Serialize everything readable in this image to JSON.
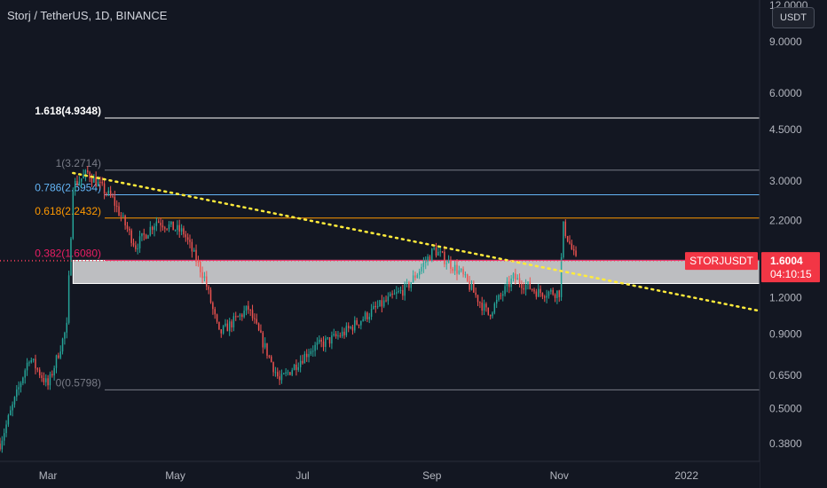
{
  "header": {
    "title": "Storj / TetherUS, 1D, BINANCE",
    "currency": "USDT"
  },
  "price_scale": {
    "ticks": [
      {
        "label": "12.0000",
        "value": 12.0
      },
      {
        "label": "9.0000",
        "value": 9.0
      },
      {
        "label": "6.0000",
        "value": 6.0
      },
      {
        "label": "4.5000",
        "value": 4.5
      },
      {
        "label": "3.0000",
        "value": 3.0
      },
      {
        "label": "2.2000",
        "value": 2.2
      },
      {
        "label": "1.6004",
        "value": 1.6004
      },
      {
        "label": "1.2000",
        "value": 1.2
      },
      {
        "label": "0.9000",
        "value": 0.9
      },
      {
        "label": "0.6500",
        "value": 0.65
      },
      {
        "label": "0.5000",
        "value": 0.5
      },
      {
        "label": "0.3800",
        "value": 0.38
      }
    ]
  },
  "time_scale": {
    "ticks": [
      "Mar",
      "May",
      "Jul",
      "Sep",
      "Nov",
      "2022"
    ]
  },
  "last_price": {
    "symbol": "STORJUSDT",
    "price": "1.6004",
    "countdown": "04:10:15",
    "value": 1.6004
  },
  "chart_data": {
    "type": "candlestick",
    "scale": "log",
    "x_range": [
      "2021-02-06",
      "2022-02-05"
    ],
    "y_range": [
      0.33,
      12.5
    ],
    "grid": false,
    "fib_levels": [
      {
        "label": "1.618(4.9348)",
        "value": 4.9348,
        "color": "#ffffff"
      },
      {
        "label": "1(3.2714)",
        "value": 3.2714,
        "color": "#787b86"
      },
      {
        "label": "0.786(2.6954)",
        "value": 2.6954,
        "color": "#64b5f6"
      },
      {
        "label": "0.618(2.2432)",
        "value": 2.2432,
        "color": "#ff9800"
      },
      {
        "label": "0.382(1.6080)",
        "value": 1.608,
        "color": "#e91e63"
      },
      {
        "label": "0(0.5798)",
        "value": 0.5798,
        "color": "#787b86"
      }
    ],
    "zone": {
      "top": 1.608,
      "bottom": 1.34,
      "start": "2021-03-13"
    },
    "trendline": {
      "start": [
        "2021-03-13",
        3.2
      ],
      "end": [
        "2022-02-05",
        1.08
      ],
      "color": "#ffeb3b"
    },
    "anchors": [
      [
        "2021-02-06",
        0.38
      ],
      [
        "2021-02-20",
        0.75
      ],
      [
        "2021-03-01",
        0.6
      ],
      [
        "2021-03-10",
        0.95
      ],
      [
        "2021-03-13",
        2.9
      ],
      [
        "2021-03-20",
        3.2
      ],
      [
        "2021-04-01",
        2.6
      ],
      [
        "2021-04-12",
        1.8
      ],
      [
        "2021-04-22",
        2.2
      ],
      [
        "2021-05-05",
        2.0
      ],
      [
        "2021-05-15",
        1.4
      ],
      [
        "2021-05-22",
        0.9
      ],
      [
        "2021-06-05",
        1.1
      ],
      [
        "2021-06-20",
        0.62
      ],
      [
        "2021-07-05",
        0.8
      ],
      [
        "2021-07-20",
        0.9
      ],
      [
        "2021-08-05",
        1.1
      ],
      [
        "2021-08-20",
        1.3
      ],
      [
        "2021-09-02",
        1.75
      ],
      [
        "2021-09-15",
        1.45
      ],
      [
        "2021-09-28",
        1.05
      ],
      [
        "2021-10-10",
        1.4
      ],
      [
        "2021-10-22",
        1.25
      ],
      [
        "2021-11-01",
        1.25
      ],
      [
        "2021-11-03",
        2.1
      ],
      [
        "2021-11-09",
        1.6
      ]
    ],
    "candles_drawn_through": "2021-11-09",
    "bull_color": "#26a69a",
    "bear_color": "#ef5350"
  }
}
